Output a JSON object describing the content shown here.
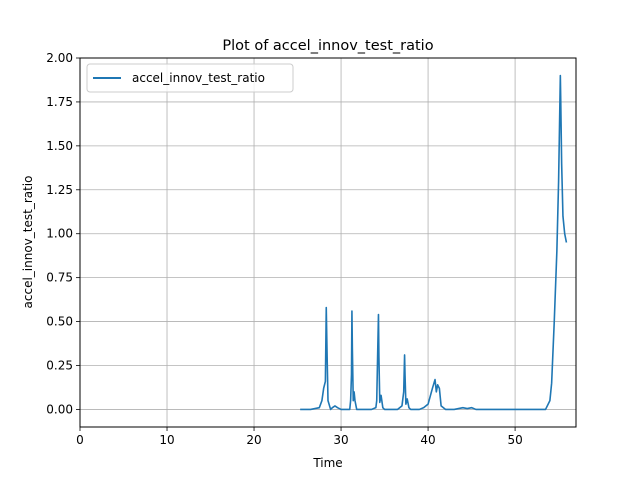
{
  "chart_data": {
    "type": "line",
    "title": "Plot of accel_innov_test_ratio",
    "xlabel": "Time",
    "ylabel": "accel_innov_test_ratio",
    "xlim": [
      0,
      57
    ],
    "ylim": [
      -0.1,
      2.0
    ],
    "xticks": [
      0,
      10,
      20,
      30,
      40,
      50
    ],
    "yticks": [
      0.0,
      0.25,
      0.5,
      0.75,
      1.0,
      1.25,
      1.5,
      1.75,
      2.0
    ],
    "xtick_labels": [
      "0",
      "10",
      "20",
      "30",
      "40",
      "50"
    ],
    "ytick_labels": [
      "0.00",
      "0.25",
      "0.50",
      "0.75",
      "1.00",
      "1.25",
      "1.50",
      "1.75",
      "2.00"
    ],
    "grid": true,
    "legend_position": "upper-left",
    "series": [
      {
        "name": "accel_innov_test_ratio",
        "color": "#1f77b4",
        "x": [
          25.3,
          26.5,
          27.5,
          27.8,
          28.0,
          28.2,
          28.3,
          28.4,
          28.5,
          28.8,
          29.0,
          29.3,
          29.6,
          30.0,
          30.5,
          31.0,
          31.1,
          31.2,
          31.25,
          31.3,
          31.4,
          31.5,
          31.6,
          31.8,
          32.0,
          32.5,
          33.0,
          33.5,
          34.0,
          34.1,
          34.2,
          34.3,
          34.35,
          34.45,
          34.6,
          34.8,
          35.0,
          35.5,
          36.0,
          36.5,
          37.0,
          37.2,
          37.3,
          37.35,
          37.45,
          37.6,
          37.8,
          38.0,
          38.5,
          39.0,
          39.5,
          40.0,
          40.5,
          40.8,
          40.95,
          41.1,
          41.3,
          41.5,
          42.0,
          43.0,
          44.0,
          44.5,
          45.0,
          45.5,
          46.0,
          48.0,
          50.0,
          52.0,
          53.5,
          54.0,
          54.2,
          54.5,
          54.8,
          55.0,
          55.1,
          55.2,
          55.25,
          55.35,
          55.5,
          55.7,
          55.9
        ],
        "y": [
          0.0,
          0.0,
          0.01,
          0.05,
          0.12,
          0.16,
          0.58,
          0.3,
          0.05,
          0.0,
          0.01,
          0.02,
          0.01,
          0.0,
          0.0,
          0.0,
          0.05,
          0.2,
          0.56,
          0.35,
          0.05,
          0.1,
          0.05,
          0.0,
          0.0,
          0.0,
          0.0,
          0.0,
          0.01,
          0.05,
          0.3,
          0.54,
          0.3,
          0.04,
          0.08,
          0.01,
          0.0,
          0.0,
          0.0,
          0.0,
          0.02,
          0.1,
          0.31,
          0.2,
          0.03,
          0.06,
          0.01,
          0.0,
          0.0,
          0.0,
          0.01,
          0.03,
          0.12,
          0.17,
          0.1,
          0.14,
          0.12,
          0.02,
          0.0,
          0.0,
          0.01,
          0.005,
          0.01,
          0.0,
          0.0,
          0.0,
          0.0,
          0.0,
          0.0,
          0.05,
          0.15,
          0.5,
          0.9,
          1.3,
          1.6,
          1.9,
          1.75,
          1.4,
          1.1,
          1.0,
          0.95
        ]
      }
    ]
  }
}
